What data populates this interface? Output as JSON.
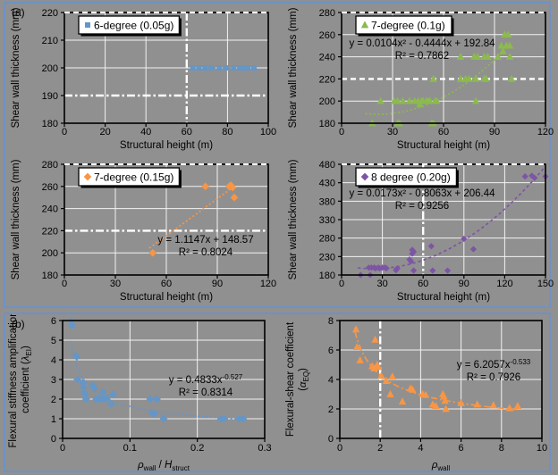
{
  "page": {
    "panel_a_label": "(a)",
    "panel_b_label": "(b)",
    "background_color": "#909090",
    "panel_border_color": "#6e92c4",
    "grid_color": "#f2f2f2",
    "refline_color": "#ffffff",
    "axis_color": "#000000"
  },
  "chart_data": [
    {
      "id": "shear-thickness-6-degree",
      "type": "scatter",
      "legend": "6-degree (0.05g)",
      "marker": "square",
      "color": "#6496c8",
      "xlabel": [
        {
          "t": "Structural height (m)"
        }
      ],
      "ylabel_lines": [
        [
          {
            "t": "Shear wall thickness (mm)"
          }
        ]
      ],
      "xlim": [
        0,
        100
      ],
      "ylim": [
        180,
        220
      ],
      "xticks": [
        0,
        20,
        40,
        60,
        80,
        100
      ],
      "yticks": [
        180,
        190,
        200,
        210,
        220
      ],
      "reflines": [
        {
          "axis": "y",
          "v": 220,
          "style": "dash"
        },
        {
          "axis": "y",
          "v": 190,
          "style": "dashdot"
        },
        {
          "axis": "x",
          "v": 60,
          "style": "dashdot"
        }
      ],
      "connect": true,
      "trend": null,
      "equation": null,
      "points": [
        [
          63,
          200
        ],
        [
          66,
          200
        ],
        [
          69,
          200
        ],
        [
          72,
          200
        ],
        [
          76,
          200
        ],
        [
          79,
          200
        ],
        [
          83,
          200
        ],
        [
          86,
          200
        ],
        [
          88,
          200
        ],
        [
          90,
          200
        ],
        [
          93,
          200
        ]
      ]
    },
    {
      "id": "shear-thickness-7-degree-01g",
      "type": "scatter",
      "legend": "7-degree (0.1g)",
      "marker": "triangle",
      "color": "#8cb950",
      "xlabel": [
        {
          "t": "Structural height (m)"
        }
      ],
      "ylabel_lines": [
        [
          {
            "t": "Shear wall thickness (mm)"
          }
        ]
      ],
      "xlim": [
        0,
        120
      ],
      "ylim": [
        180,
        280
      ],
      "xticks": [
        0,
        30,
        60,
        90,
        120
      ],
      "yticks": [
        180,
        200,
        220,
        240,
        260,
        280
      ],
      "reflines": [
        {
          "axis": "y",
          "v": 280,
          "style": "dash"
        },
        {
          "axis": "y",
          "v": 220,
          "style": "dash"
        }
      ],
      "connect": false,
      "trend": {
        "type": "poly2",
        "a": 0.0104,
        "b": -0.4444,
        "c": 192.84,
        "xrange": [
          14,
          100
        ],
        "dash": "dot"
      },
      "equation": {
        "lines": [
          "y = 0.0104x² - 0.4444x + 192.84",
          "R² = 0.7862"
        ]
      },
      "points": [
        [
          18,
          180
        ],
        [
          23,
          200
        ],
        [
          31,
          200
        ],
        [
          33,
          180
        ],
        [
          33,
          200
        ],
        [
          34,
          180
        ],
        [
          36,
          200
        ],
        [
          40,
          200
        ],
        [
          43,
          200
        ],
        [
          45,
          200
        ],
        [
          46,
          197
        ],
        [
          47,
          200
        ],
        [
          48,
          200
        ],
        [
          50,
          200
        ],
        [
          51,
          200
        ],
        [
          52,
          200
        ],
        [
          53,
          180
        ],
        [
          54,
          180
        ],
        [
          54,
          220
        ],
        [
          55,
          200
        ],
        [
          56,
          200
        ],
        [
          70,
          220
        ],
        [
          70,
          240
        ],
        [
          73,
          220
        ],
        [
          75,
          220
        ],
        [
          78,
          240
        ],
        [
          79,
          200
        ],
        [
          79,
          220
        ],
        [
          80,
          240
        ],
        [
          84,
          220
        ],
        [
          84,
          240
        ],
        [
          85,
          220
        ],
        [
          86,
          240
        ],
        [
          92,
          240
        ],
        [
          94,
          250
        ],
        [
          95,
          245
        ],
        [
          96,
          260
        ],
        [
          97,
          250
        ],
        [
          98,
          260
        ],
        [
          99,
          240
        ],
        [
          99,
          250
        ],
        [
          100,
          220
        ]
      ]
    },
    {
      "id": "shear-thickness-7-degree-015g",
      "type": "scatter",
      "legend": "7-degree (0.15g)",
      "marker": "diamond",
      "color": "#f79646",
      "xlabel": [
        {
          "t": "Structural height (m)"
        }
      ],
      "ylabel_lines": [
        [
          {
            "t": "Shear wall thickness (mm)"
          }
        ]
      ],
      "xlim": [
        0,
        120
      ],
      "ylim": [
        180,
        280
      ],
      "xticks": [
        0,
        30,
        60,
        90,
        120
      ],
      "yticks": [
        180,
        200,
        220,
        240,
        260,
        280
      ],
      "reflines": [
        {
          "axis": "y",
          "v": 280,
          "style": "dash"
        },
        {
          "axis": "y",
          "v": 220,
          "style": "dashdot"
        }
      ],
      "connect": false,
      "trend": {
        "type": "linear",
        "a": 1.1147,
        "b": 148.57,
        "xrange": [
          50,
          100
        ],
        "dash": "dot"
      },
      "equation": {
        "lines": [
          "y = 1.1147x + 148.57",
          "R² = 0.8024"
        ]
      },
      "points": [
        [
          52,
          200
        ],
        [
          83,
          260
        ],
        [
          97,
          260
        ],
        [
          98,
          261
        ],
        [
          99,
          259
        ],
        [
          100,
          250
        ]
      ]
    },
    {
      "id": "shear-thickness-8-degree",
      "type": "scatter",
      "legend": "8 degree (0.20g)",
      "marker": "diamond",
      "color": "#7d55a5",
      "xlabel": [
        {
          "t": "Structural height (m)"
        }
      ],
      "ylabel_lines": [
        [
          {
            "t": "Shear wall thickness (mm)"
          }
        ]
      ],
      "xlim": [
        0,
        150
      ],
      "ylim": [
        180,
        480
      ],
      "xticks": [
        0,
        30,
        60,
        90,
        120,
        150
      ],
      "yticks": [
        180,
        230,
        280,
        330,
        380,
        430,
        480
      ],
      "reflines": [
        {
          "axis": "y",
          "v": 480,
          "style": "dash"
        },
        {
          "axis": "x",
          "v": 60,
          "style": "dashdot"
        }
      ],
      "connect": false,
      "trend": {
        "type": "poly2",
        "a": 0.0173,
        "b": -0.8063,
        "c": 206.44,
        "xrange": [
          12,
          150
        ],
        "dash": "dash"
      },
      "equation": {
        "lines": [
          "y = 0.0173x² - 0.8063x + 206.44",
          "R² = 0.9256"
        ]
      },
      "points": [
        [
          14,
          180
        ],
        [
          20,
          200
        ],
        [
          21,
          180
        ],
        [
          22,
          200
        ],
        [
          24,
          200
        ],
        [
          25,
          198
        ],
        [
          27,
          200
        ],
        [
          28,
          198
        ],
        [
          30,
          200
        ],
        [
          32,
          200
        ],
        [
          33,
          198
        ],
        [
          40,
          193
        ],
        [
          41,
          198
        ],
        [
          50,
          222
        ],
        [
          51,
          217
        ],
        [
          52,
          238
        ],
        [
          52,
          248
        ],
        [
          53,
          243
        ],
        [
          53,
          192
        ],
        [
          66,
          258
        ],
        [
          67,
          192
        ],
        [
          78,
          192
        ],
        [
          90,
          278
        ],
        [
          97,
          250
        ],
        [
          135,
          447
        ],
        [
          140,
          449
        ],
        [
          142,
          443
        ],
        [
          150,
          447
        ]
      ]
    },
    {
      "id": "flexural-stiffness-amplification",
      "type": "scatter",
      "legend": null,
      "marker": "diamond",
      "color": "#6496c8",
      "xlabel": [
        {
          "t": "ρ",
          "i": true
        },
        {
          "t": "wall",
          "sub": true
        },
        {
          "t": " / "
        },
        {
          "t": "H",
          "i": true
        },
        {
          "t": "struct",
          "sub": true
        }
      ],
      "ylabel_lines": [
        [
          {
            "t": "Flexural stiffness amplification"
          }
        ],
        [
          {
            "t": "coefficient ("
          },
          {
            "t": "λ",
            "i": true
          },
          {
            "t": "EI",
            "sub": true
          },
          {
            "t": ")"
          }
        ]
      ],
      "xlim": [
        0,
        0.3
      ],
      "ylim": [
        0,
        6
      ],
      "xticks": [
        0,
        0.1,
        0.2,
        0.3
      ],
      "yticks": [
        0,
        1,
        2,
        3,
        4,
        5,
        6
      ],
      "reflines": [],
      "connect": false,
      "trend": {
        "type": "power",
        "a": 0.4833,
        "b": -0.527,
        "xrange": [
          0.012,
          0.27
        ],
        "dash": "dot"
      },
      "equation": {
        "lines": [
          [
            {
              "t": "y = 0.4833x"
            },
            {
              "t": "-0.527",
              "sup": true
            }
          ],
          "R² = 0.8314"
        ]
      },
      "points": [
        [
          0.013,
          5.95
        ],
        [
          0.014,
          5.75
        ],
        [
          0.02,
          4.2
        ],
        [
          0.021,
          4.15
        ],
        [
          0.022,
          3.0
        ],
        [
          0.03,
          2.85
        ],
        [
          0.031,
          2.6
        ],
        [
          0.032,
          2.3
        ],
        [
          0.033,
          2.25
        ],
        [
          0.035,
          2.0
        ],
        [
          0.045,
          2.7
        ],
        [
          0.047,
          2.55
        ],
        [
          0.05,
          2.0
        ],
        [
          0.054,
          2.0
        ],
        [
          0.058,
          2.0
        ],
        [
          0.06,
          2.35
        ],
        [
          0.063,
          2.0
        ],
        [
          0.066,
          2.05
        ],
        [
          0.072,
          1.75
        ],
        [
          0.075,
          2.25
        ],
        [
          0.13,
          2.0
        ],
        [
          0.133,
          1.3
        ],
        [
          0.136,
          1.25
        ],
        [
          0.14,
          2.0
        ],
        [
          0.15,
          1.0
        ],
        [
          0.235,
          1.0
        ],
        [
          0.24,
          1.0
        ],
        [
          0.262,
          1.0
        ],
        [
          0.268,
          1.0
        ]
      ]
    },
    {
      "id": "flexural-shear-coefficient",
      "type": "scatter",
      "legend": null,
      "marker": "triangle",
      "color": "#f79646",
      "xlabel": [
        {
          "t": "ρ",
          "i": true
        },
        {
          "t": "wall",
          "sub": true
        }
      ],
      "ylabel_lines": [
        [
          {
            "t": "Flexural-shear coefficient"
          }
        ],
        [
          {
            "t": "("
          },
          {
            "t": "α",
            "i": true
          },
          {
            "t": "EQ",
            "sub": true
          },
          {
            "t": ")"
          }
        ]
      ],
      "xlim": [
        0,
        10
      ],
      "ylim": [
        0,
        8
      ],
      "xticks": [
        0,
        2,
        4,
        6,
        8,
        10
      ],
      "yticks": [
        0,
        2,
        4,
        6,
        8
      ],
      "reflines": [
        {
          "axis": "x",
          "v": 2,
          "style": "dashdot"
        }
      ],
      "connect": false,
      "trend": {
        "type": "power",
        "a": 6.2057,
        "b": -0.533,
        "xrange": [
          0.75,
          8.8
        ],
        "dash": "dashdot"
      },
      "equation": {
        "lines": [
          [
            {
              "t": "y = 6.2057x"
            },
            {
              "t": "-0.533",
              "sup": true
            }
          ],
          "R² = 0.7926"
        ]
      },
      "points": [
        [
          0.8,
          7.4
        ],
        [
          0.85,
          6.2
        ],
        [
          1.0,
          5.3
        ],
        [
          1.6,
          4.9
        ],
        [
          1.7,
          4.75
        ],
        [
          1.75,
          6.7
        ],
        [
          1.85,
          5.0
        ],
        [
          1.9,
          4.85
        ],
        [
          2.05,
          4.25
        ],
        [
          2.3,
          3.9
        ],
        [
          2.5,
          3.0
        ],
        [
          2.6,
          4.2
        ],
        [
          3.1,
          2.5
        ],
        [
          3.5,
          3.4
        ],
        [
          3.6,
          3.3
        ],
        [
          4.1,
          3.0
        ],
        [
          4.25,
          2.95
        ],
        [
          4.6,
          2.3
        ],
        [
          4.75,
          2.2
        ],
        [
          5.1,
          3.0
        ],
        [
          5.15,
          2.85
        ],
        [
          5.2,
          2.55
        ],
        [
          5.25,
          2.0
        ],
        [
          6.0,
          2.4
        ],
        [
          6.8,
          2.3
        ],
        [
          7.6,
          2.25
        ],
        [
          8.4,
          2.05
        ],
        [
          8.8,
          2.2
        ]
      ]
    }
  ]
}
